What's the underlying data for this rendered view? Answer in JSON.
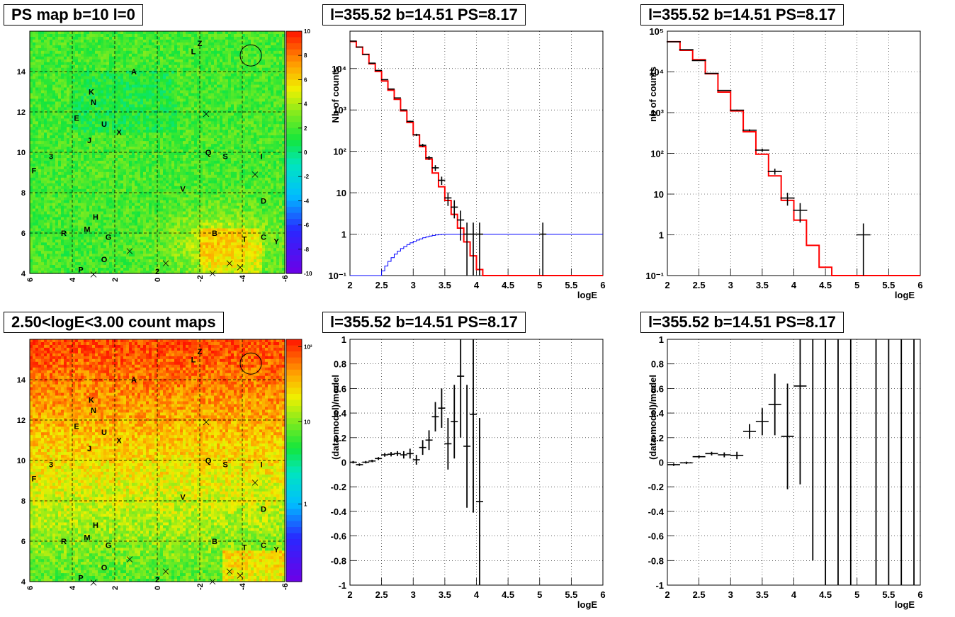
{
  "panels": {
    "ps_map": {
      "title": "PS map b=10 l=0",
      "x_ticks": [
        "6",
        "4",
        "2",
        "0",
        "-2",
        "-4",
        "-6"
      ],
      "y_ticks": [
        "4",
        "6",
        "8",
        "10",
        "12",
        "14"
      ],
      "color_ticks": [
        "10",
        "8",
        "6",
        "4",
        "2",
        "0",
        "-2",
        "-4",
        "-6",
        "-8",
        "-10"
      ],
      "colormap": "rainbow"
    },
    "count_map": {
      "title": "2.50<logE<3.00 count maps",
      "x_ticks": [
        "6",
        "4",
        "2",
        "0",
        "-2",
        "-4",
        "-6"
      ],
      "y_ticks": [
        "4",
        "6",
        "8",
        "10",
        "12",
        "14"
      ],
      "color_ticks": [
        "10²",
        "10",
        "1"
      ],
      "colormap": "rainbow-log"
    },
    "spec_left": {
      "title": "l=355.52 b=14.51 PS=8.17",
      "ylabel": "Nb of counts",
      "xlabel": "logE",
      "x_ticks": [
        "2",
        "2.5",
        "3",
        "3.5",
        "4",
        "4.5",
        "5",
        "5.5",
        "6"
      ],
      "y_ticks": [
        "10⁻¹",
        "1",
        "10",
        "10²",
        "10³",
        "10⁴"
      ]
    },
    "spec_right": {
      "title": "l=355.52 b=14.51 PS=8.17",
      "ylabel": "nb of counts",
      "xlabel": "logE",
      "x_ticks": [
        "2",
        "2.5",
        "3",
        "3.5",
        "4",
        "4.5",
        "5",
        "5.5",
        "6"
      ],
      "y_ticks": [
        "10⁻¹",
        "1",
        "10",
        "10²",
        "10³",
        "10⁴",
        "10⁵"
      ]
    },
    "res_left": {
      "title": "l=355.52 b=14.51 PS=8.17",
      "ylabel": "(data-model)/model",
      "xlabel": "logE",
      "x_ticks": [
        "2",
        "2.5",
        "3",
        "3.5",
        "4",
        "4.5",
        "5",
        "5.5",
        "6"
      ],
      "y_ticks": [
        "1",
        "0.8",
        "0.6",
        "0.4",
        "0.2",
        "0",
        "-0.2",
        "-0.4",
        "-0.6",
        "-0.8",
        "-1"
      ]
    },
    "res_right": {
      "title": "l=355.52 b=14.51 PS=8.17",
      "ylabel": "(data-model)/model",
      "xlabel": "logE",
      "x_ticks": [
        "2",
        "2.5",
        "3",
        "3.5",
        "4",
        "4.5",
        "5",
        "5.5",
        "6"
      ],
      "y_ticks": [
        "1",
        "0.8",
        "0.6",
        "0.4",
        "0.2",
        "0",
        "-0.2",
        "-0.4",
        "-0.6",
        "-0.8",
        "-1"
      ]
    }
  },
  "map_markers": {
    "letters": [
      {
        "t": "Z",
        "l": -2.0,
        "b": 15.4
      },
      {
        "t": "L",
        "l": -1.7,
        "b": 15.0
      },
      {
        "t": "A",
        "l": 1.1,
        "b": 14.0
      },
      {
        "t": "K",
        "l": 3.1,
        "b": 13.0
      },
      {
        "t": "N",
        "l": 3.0,
        "b": 12.5
      },
      {
        "t": "E",
        "l": 3.8,
        "b": 11.7
      },
      {
        "t": "U",
        "l": 2.5,
        "b": 11.4
      },
      {
        "t": "X",
        "l": 1.8,
        "b": 11.0
      },
      {
        "t": "J",
        "l": 3.2,
        "b": 10.6
      },
      {
        "t": "3",
        "l": 5.0,
        "b": 9.8
      },
      {
        "t": "Q",
        "l": -2.4,
        "b": 10.0
      },
      {
        "t": "S",
        "l": -3.2,
        "b": 9.8
      },
      {
        "t": "I",
        "l": -4.9,
        "b": 9.8
      },
      {
        "t": "F",
        "l": 5.8,
        "b": 9.1
      },
      {
        "t": "V",
        "l": -1.2,
        "b": 8.2
      },
      {
        "t": "D",
        "l": -5.0,
        "b": 7.6
      },
      {
        "t": "H",
        "l": 2.9,
        "b": 6.8
      },
      {
        "t": "M",
        "l": 3.3,
        "b": 6.2
      },
      {
        "t": "R",
        "l": 4.4,
        "b": 6.0
      },
      {
        "t": "B",
        "l": -2.7,
        "b": 6.0
      },
      {
        "t": "C",
        "l": -5.0,
        "b": 5.8
      },
      {
        "t": "Y",
        "l": -5.6,
        "b": 5.6
      },
      {
        "t": "T",
        "l": -4.1,
        "b": 5.7
      },
      {
        "t": "G",
        "l": 2.3,
        "b": 5.8
      },
      {
        "t": "O",
        "l": 2.5,
        "b": 4.7
      },
      {
        "t": "P",
        "l": 3.6,
        "b": 4.2
      },
      {
        "t": "2",
        "l": 0.0,
        "b": 4.1
      }
    ],
    "crosses": [
      {
        "l": -2.3,
        "b": 11.9
      },
      {
        "l": -4.6,
        "b": 8.9
      },
      {
        "l": 1.3,
        "b": 5.1
      },
      {
        "l": -0.4,
        "b": 4.5
      },
      {
        "l": -3.4,
        "b": 4.5
      },
      {
        "l": -3.9,
        "b": 4.3
      },
      {
        "l": -2.6,
        "b": 4.0
      },
      {
        "l": 3.0,
        "b": 3.95
      }
    ],
    "circle": {
      "l": -4.4,
      "b": 14.8
    }
  },
  "chart_data": [
    {
      "type": "heatmap",
      "title": "PS map b=10 l=0",
      "xlim": [
        6,
        -6
      ],
      "ylim": [
        4,
        16
      ],
      "zlim": [
        -10,
        10
      ],
      "note": "significance map, mostly 0 to 4 with hot spot near l=-4.4 b=14.8"
    },
    {
      "type": "heatmap",
      "title": "2.50<logE<3.00 count maps",
      "xlim": [
        6,
        -6
      ],
      "ylim": [
        4,
        16
      ],
      "zlim": [
        0.1,
        150
      ],
      "zscale": "log"
    },
    {
      "type": "line",
      "title": "l=355.52 b=14.51 PS=8.17",
      "xlabel": "logE",
      "ylabel": "Nb of counts",
      "xlim": [
        2,
        6
      ],
      "ylim": [
        0.1,
        80000
      ],
      "yscale": "log",
      "model_red": {
        "edges": [
          2.0,
          2.1,
          2.2,
          2.3,
          2.4,
          2.5,
          2.6,
          2.7,
          2.8,
          2.9,
          3.0,
          3.1,
          3.2,
          3.3,
          3.4,
          3.5,
          3.6,
          3.7,
          3.8,
          3.9,
          4.0,
          4.1,
          4.2,
          4.3,
          4.4,
          4.5,
          4.6,
          4.7,
          4.8,
          6.0
        ],
        "values": [
          45000,
          33000,
          22000,
          13000,
          8500,
          5000,
          3000,
          1800,
          950,
          500,
          250,
          130,
          65,
          30,
          14,
          6.5,
          3,
          1.4,
          0.65,
          0.3,
          0.14,
          0.06,
          0.03,
          0.015,
          0.008,
          0.005,
          0.003,
          0.002,
          0.001
        ]
      },
      "model_blue": {
        "edges": [
          2.0,
          2.5,
          2.55,
          2.6,
          2.65,
          2.7,
          2.75,
          2.8,
          2.85,
          2.9,
          2.95,
          3.0,
          3.05,
          3.1,
          3.15,
          3.2,
          3.25,
          3.3,
          3.35,
          3.4,
          3.45,
          3.5,
          3.55,
          3.6,
          4.0,
          6.0
        ],
        "values": [
          0.1,
          0.13,
          0.17,
          0.22,
          0.27,
          0.33,
          0.39,
          0.45,
          0.5,
          0.56,
          0.62,
          0.67,
          0.72,
          0.77,
          0.82,
          0.86,
          0.9,
          0.93,
          0.96,
          0.98,
          0.99,
          1.0,
          1.0,
          1.0,
          1.0
        ]
      },
      "data": [
        {
          "x": 2.05,
          "y": 46000,
          "err": 210
        },
        {
          "x": 2.15,
          "y": 33000,
          "err": 180
        },
        {
          "x": 2.25,
          "y": 22000,
          "err": 150
        },
        {
          "x": 2.35,
          "y": 13500,
          "err": 120
        },
        {
          "x": 2.45,
          "y": 9000,
          "err": 95
        },
        {
          "x": 2.55,
          "y": 5400,
          "err": 75
        },
        {
          "x": 2.65,
          "y": 3200,
          "err": 57
        },
        {
          "x": 2.75,
          "y": 1950,
          "err": 44
        },
        {
          "x": 2.85,
          "y": 1000,
          "err": 32
        },
        {
          "x": 2.95,
          "y": 530,
          "err": 23
        },
        {
          "x": 3.05,
          "y": 250,
          "err": 16
        },
        {
          "x": 3.15,
          "y": 140,
          "err": 12
        },
        {
          "x": 3.25,
          "y": 70,
          "err": 8
        },
        {
          "x": 3.35,
          "y": 40,
          "err": 6.3
        },
        {
          "x": 3.45,
          "y": 20,
          "err": 4.5
        },
        {
          "x": 3.55,
          "y": 7.5,
          "err": 2.7
        },
        {
          "x": 3.65,
          "y": 4.5,
          "err": 2.1
        },
        {
          "x": 3.75,
          "y": 2.2,
          "err": 1.5
        },
        {
          "x": 3.85,
          "y": 1,
          "err": 0.9
        },
        {
          "x": 3.95,
          "y": 1,
          "err": 0.9
        },
        {
          "x": 4.05,
          "y": 1,
          "err": 0.9
        },
        {
          "x": 5.05,
          "y": 1,
          "err": 0.9
        }
      ]
    },
    {
      "type": "line",
      "title": "l=355.52 b=14.51 PS=8.17",
      "xlabel": "logE",
      "ylabel": "nb of counts",
      "xlim": [
        2,
        6
      ],
      "ylim": [
        0.1,
        100000
      ],
      "yscale": "log",
      "model_red": {
        "edges": [
          2.0,
          2.2,
          2.4,
          2.6,
          2.8,
          3.0,
          3.2,
          3.4,
          3.6,
          3.8,
          4.0,
          4.2,
          4.4,
          4.6,
          4.8,
          6.0
        ],
        "values": [
          55000,
          34000,
          20000,
          9000,
          3200,
          1100,
          340,
          95,
          28,
          7,
          2.3,
          0.55,
          0.16,
          0.1,
          0.1
        ]
      },
      "data": [
        {
          "x": 2.1,
          "y": 55000,
          "err": 235
        },
        {
          "x": 2.3,
          "y": 35000,
          "err": 190
        },
        {
          "x": 2.5,
          "y": 19000,
          "err": 140
        },
        {
          "x": 2.7,
          "y": 9200,
          "err": 96
        },
        {
          "x": 2.9,
          "y": 3500,
          "err": 59
        },
        {
          "x": 3.1,
          "y": 1150,
          "err": 34
        },
        {
          "x": 3.3,
          "y": 370,
          "err": 19
        },
        {
          "x": 3.5,
          "y": 120,
          "err": 11
        },
        {
          "x": 3.7,
          "y": 36,
          "err": 6
        },
        {
          "x": 3.9,
          "y": 8,
          "err": 2.8
        },
        {
          "x": 4.1,
          "y": 4,
          "err": 2
        },
        {
          "x": 5.1,
          "y": 1,
          "err": 0.9
        }
      ]
    },
    {
      "type": "scatter",
      "title": "l=355.52 b=14.51 PS=8.17",
      "xlabel": "logE",
      "ylabel": "(data-model)/model",
      "xlim": [
        2,
        6
      ],
      "ylim": [
        -1,
        1
      ],
      "data": [
        {
          "x": 2.05,
          "y": 0.0,
          "err": 0.01
        },
        {
          "x": 2.15,
          "y": -0.02,
          "err": 0.01
        },
        {
          "x": 2.25,
          "y": 0.0,
          "err": 0.01
        },
        {
          "x": 2.35,
          "y": 0.01,
          "err": 0.01
        },
        {
          "x": 2.45,
          "y": 0.03,
          "err": 0.012
        },
        {
          "x": 2.55,
          "y": 0.06,
          "err": 0.015
        },
        {
          "x": 2.65,
          "y": 0.065,
          "err": 0.018
        },
        {
          "x": 2.75,
          "y": 0.07,
          "err": 0.02
        },
        {
          "x": 2.85,
          "y": 0.06,
          "err": 0.03
        },
        {
          "x": 2.95,
          "y": 0.07,
          "err": 0.04
        },
        {
          "x": 3.05,
          "y": 0.02,
          "err": 0.04
        },
        {
          "x": 3.15,
          "y": 0.12,
          "err": 0.06
        },
        {
          "x": 3.25,
          "y": 0.18,
          "err": 0.08
        },
        {
          "x": 3.35,
          "y": 0.37,
          "err": 0.12
        },
        {
          "x": 3.45,
          "y": 0.44,
          "err": 0.16
        },
        {
          "x": 3.55,
          "y": 0.15,
          "err": 0.21
        },
        {
          "x": 3.65,
          "y": 0.33,
          "err": 0.3
        },
        {
          "x": 3.75,
          "y": 0.7,
          "err": 0.5
        },
        {
          "x": 3.85,
          "y": 0.13,
          "err": 0.5
        },
        {
          "x": 3.95,
          "y": 0.39,
          "err": 0.8
        },
        {
          "x": 4.05,
          "y": -0.32,
          "err": 0.68
        }
      ]
    },
    {
      "type": "scatter",
      "title": "l=355.52 b=14.51 PS=8.17",
      "xlabel": "logE",
      "ylabel": "(data-model)/model",
      "xlim": [
        2,
        6
      ],
      "ylim": [
        -1,
        1
      ],
      "data": [
        {
          "x": 2.1,
          "y": -0.02,
          "err": 0.01
        },
        {
          "x": 2.3,
          "y": -0.005,
          "err": 0.01
        },
        {
          "x": 2.5,
          "y": 0.045,
          "err": 0.012
        },
        {
          "x": 2.7,
          "y": 0.07,
          "err": 0.015
        },
        {
          "x": 2.9,
          "y": 0.06,
          "err": 0.02
        },
        {
          "x": 3.1,
          "y": 0.055,
          "err": 0.03
        },
        {
          "x": 3.3,
          "y": 0.25,
          "err": 0.06
        },
        {
          "x": 3.5,
          "y": 0.33,
          "err": 0.11
        },
        {
          "x": 3.7,
          "y": 0.47,
          "err": 0.25
        },
        {
          "x": 3.9,
          "y": 0.21,
          "err": 0.43
        },
        {
          "x": 4.1,
          "y": 0.62,
          "err": 0.8
        },
        {
          "x": 4.3,
          "y": 1.0,
          "err": 1.8
        },
        {
          "x": 4.5,
          "y": 1.0,
          "err": 2.0
        },
        {
          "x": 4.7,
          "y": 1.0,
          "err": 2.0
        },
        {
          "x": 4.9,
          "y": 1.0,
          "err": 2.0
        },
        {
          "x": 5.3,
          "y": 1.0,
          "err": 2.0
        },
        {
          "x": 5.5,
          "y": 1.0,
          "err": 2.0
        },
        {
          "x": 5.7,
          "y": 1.0,
          "err": 2.0
        },
        {
          "x": 5.9,
          "y": 1.0,
          "err": 2.0
        }
      ]
    }
  ]
}
